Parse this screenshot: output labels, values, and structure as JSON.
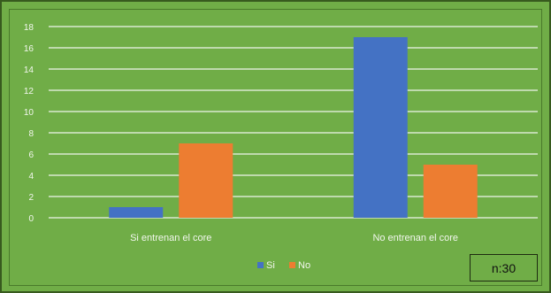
{
  "chart_data": {
    "type": "bar",
    "categories": [
      "Si entrenan el core",
      "No entrenan el core"
    ],
    "series": [
      {
        "name": "Si",
        "values": [
          1,
          17
        ],
        "color": "#4472c4"
      },
      {
        "name": "No",
        "values": [
          7,
          5
        ],
        "color": "#ed7d31"
      }
    ],
    "yticks": [
      "0",
      "2",
      "4",
      "6",
      "8",
      "10",
      "12",
      "14",
      "16",
      "18"
    ],
    "ylim": [
      0,
      18
    ],
    "grid": true,
    "legend_position": "bottom",
    "annotation": "n:30",
    "colors": {
      "background": "#70ad47",
      "gridline": "#d9ead0",
      "text": "#f2f7ee"
    }
  }
}
